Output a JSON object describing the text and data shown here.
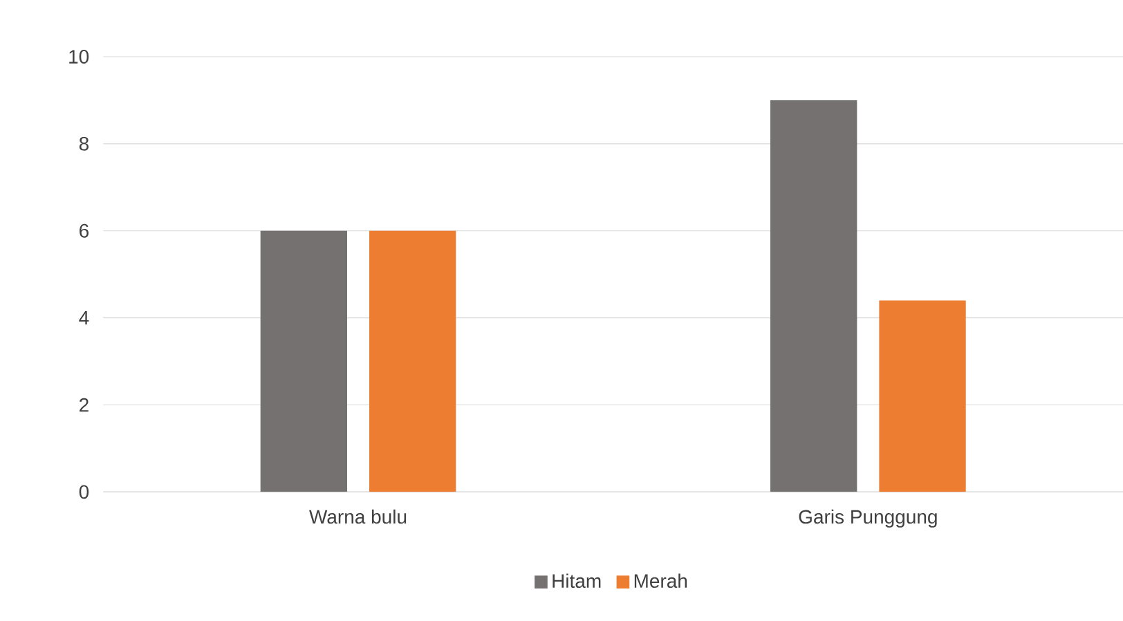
{
  "chart_data": {
    "type": "bar",
    "categories": [
      "Warna bulu",
      "Garis Punggung"
    ],
    "series": [
      {
        "name": "Hitam",
        "color": "#767171",
        "values": [
          6,
          9
        ]
      },
      {
        "name": "Merah",
        "color": "#ed7d31",
        "values": [
          6,
          4.4
        ]
      }
    ],
    "ylim": [
      0,
      10
    ],
    "yticks": [
      0,
      2,
      4,
      6,
      8,
      10
    ],
    "grid": "y",
    "legend": "bottom"
  }
}
